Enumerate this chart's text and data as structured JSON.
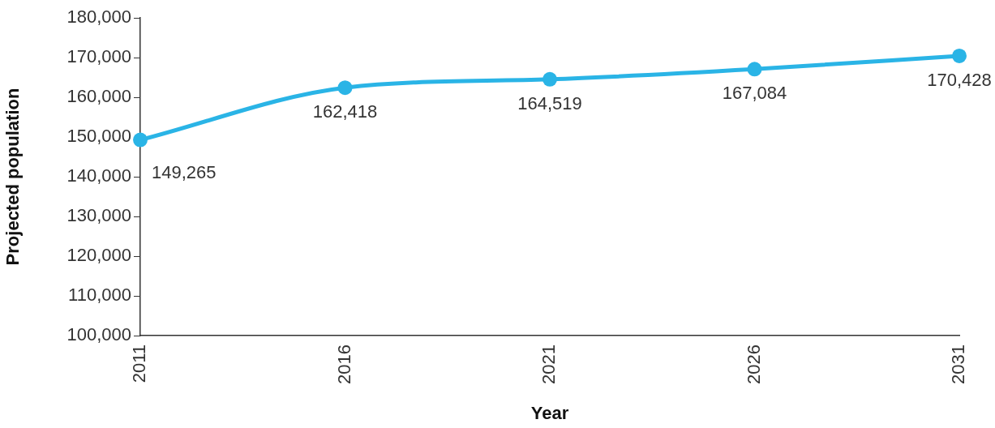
{
  "chart_data": {
    "type": "line",
    "xlabel": "Year",
    "ylabel": "Projected population",
    "categories": [
      "2011",
      "2016",
      "2021",
      "2026",
      "2031"
    ],
    "series": [
      {
        "color": "#2ab4e6",
        "values": [
          149265,
          162418,
          164519,
          167084,
          170428
        ],
        "value_labels": [
          "149,265",
          "162,418",
          "164,519",
          "167,084",
          "170,428"
        ]
      }
    ],
    "ylim": [
      100000,
      180000
    ],
    "yticks": [
      {
        "value": 100000,
        "label": "100,000"
      },
      {
        "value": 110000,
        "label": "110,000"
      },
      {
        "value": 120000,
        "label": "120,000"
      },
      {
        "value": 130000,
        "label": "130,000"
      },
      {
        "value": 140000,
        "label": "140,000"
      },
      {
        "value": 150000,
        "label": "150,000"
      },
      {
        "value": 160000,
        "label": "160,000"
      },
      {
        "value": 170000,
        "label": "170,000"
      },
      {
        "value": 180000,
        "label": "180,000"
      }
    ],
    "grid": false,
    "legend": false,
    "marker": "circle",
    "line_style": "solid"
  }
}
